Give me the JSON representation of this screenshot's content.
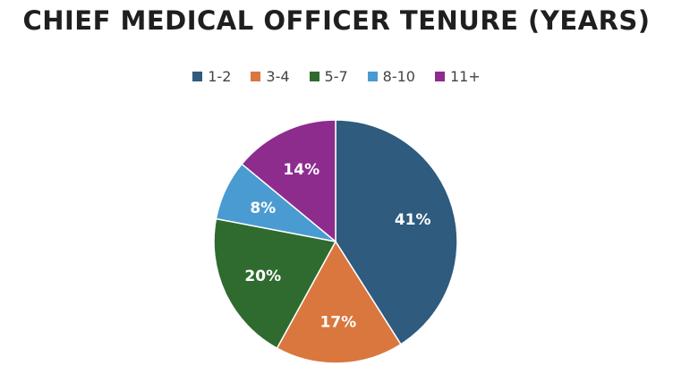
{
  "chart_data": {
    "type": "pie",
    "title": "CHIEF MEDICAL OFFICER TENURE (YEARS)",
    "legend_position": "top",
    "categories": [
      "1-2",
      "3-4",
      "5-7",
      "8-10",
      "11+"
    ],
    "values": [
      41,
      17,
      20,
      8,
      14
    ],
    "labels": [
      "41%",
      "17%",
      "20%",
      "8%",
      "14%"
    ],
    "colors": [
      "#2e5b7e",
      "#d9773f",
      "#2f6b2f",
      "#4a9bd1",
      "#8e2c8e"
    ]
  }
}
